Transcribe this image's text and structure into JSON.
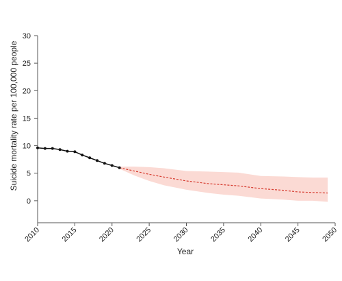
{
  "chart_data": {
    "type": "line",
    "title": "",
    "xlabel": "Year",
    "ylabel": "Suicide mortality rate per 100,000 people",
    "xlim": [
      2010,
      2050
    ],
    "ylim": [
      -4,
      30
    ],
    "x_ticks": [
      2010,
      2015,
      2020,
      2025,
      2030,
      2035,
      2040,
      2045,
      2050
    ],
    "y_ticks": [
      0,
      5,
      10,
      15,
      20,
      25,
      30
    ],
    "grid": false,
    "legend": "none",
    "colors": {
      "observed": "#111111",
      "forecast": "#d63b2f",
      "band": "#fad4cc",
      "axis": "#555555"
    },
    "series": [
      {
        "style": "solid-with-markers",
        "x": [
          2010,
          2011,
          2012,
          2013,
          2014,
          2015,
          2016,
          2017,
          2018,
          2019,
          2020,
          2021
        ],
        "y": [
          9.6,
          9.5,
          9.5,
          9.3,
          9.0,
          8.9,
          8.3,
          7.8,
          7.3,
          6.8,
          6.4,
          6.0
        ]
      },
      {
        "style": "dashed",
        "x": [
          2021,
          2023,
          2025,
          2027,
          2030,
          2033,
          2035,
          2037,
          2040,
          2043,
          2045,
          2047,
          2049
        ],
        "y": [
          6.0,
          5.4,
          4.8,
          4.3,
          3.6,
          3.1,
          2.9,
          2.7,
          2.2,
          1.9,
          1.6,
          1.5,
          1.4
        ],
        "band_upper": [
          6.2,
          6.2,
          6.1,
          5.9,
          5.4,
          5.3,
          5.2,
          5.1,
          4.5,
          4.4,
          4.3,
          4.2,
          4.2
        ],
        "band_lower": [
          5.8,
          4.6,
          3.6,
          2.8,
          2.0,
          1.4,
          1.1,
          0.9,
          0.4,
          0.2,
          0.0,
          0.0,
          -0.2
        ]
      }
    ]
  }
}
